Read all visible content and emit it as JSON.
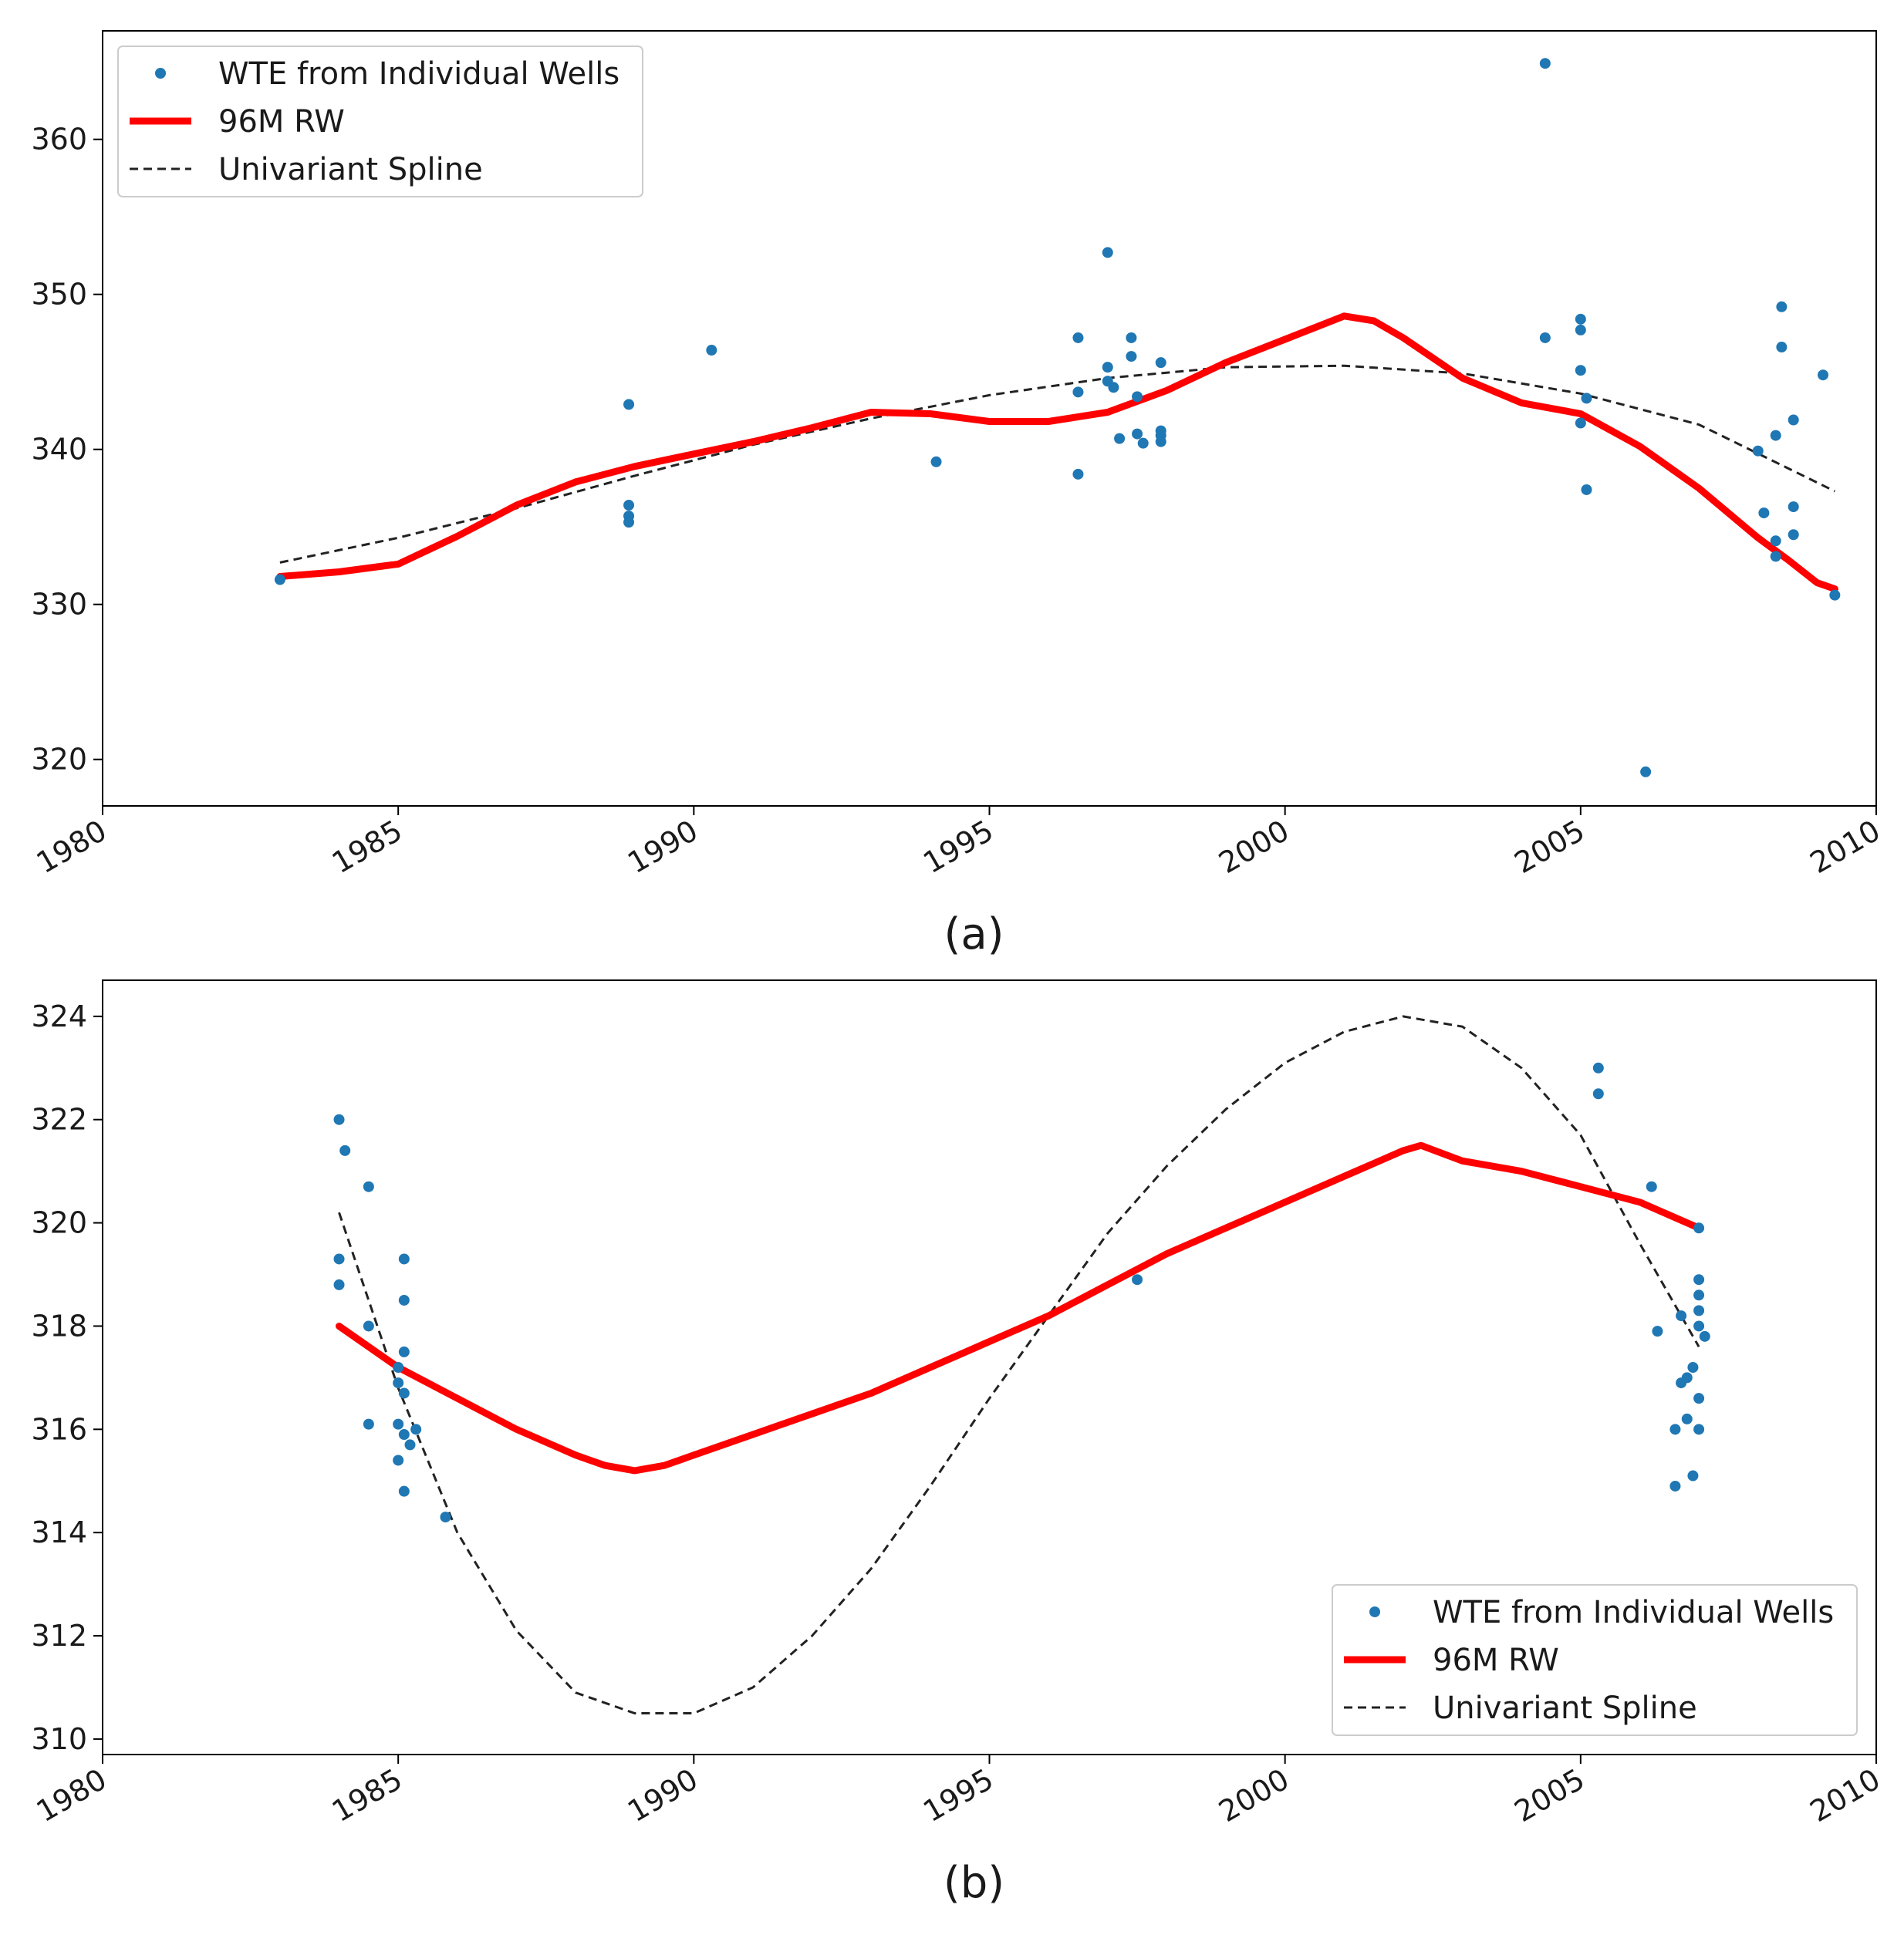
{
  "chart_data": [
    {
      "type": "scatter",
      "panel_label": "(a)",
      "xlim": [
        1980,
        2010
      ],
      "ylim": [
        317,
        367
      ],
      "x_ticks": [
        "1980",
        "1985",
        "1990",
        "1995",
        "2000",
        "2005",
        "2010"
      ],
      "y_ticks": [
        "320",
        "330",
        "340",
        "350",
        "360"
      ],
      "legend": {
        "placement": "upper-left",
        "entries": [
          "WTE from Individual Wells",
          "96M RW",
          "Univariant Spline"
        ]
      },
      "colors": {
        "points": "#1f77b4",
        "rolling": "#ff0000",
        "spline": "#222222"
      },
      "series": [
        {
          "name": "WTE from Individual Wells",
          "kind": "points",
          "points": [
            [
              1983.0,
              331.6
            ],
            [
              1988.9,
              342.9
            ],
            [
              1988.9,
              336.4
            ],
            [
              1988.9,
              335.7
            ],
            [
              1988.9,
              335.3
            ],
            [
              1990.3,
              346.4
            ],
            [
              1994.1,
              339.2
            ],
            [
              1996.5,
              347.2
            ],
            [
              1996.5,
              343.7
            ],
            [
              1996.5,
              338.4
            ],
            [
              1997.0,
              352.7
            ],
            [
              1997.0,
              345.3
            ],
            [
              1997.0,
              344.4
            ],
            [
              1997.1,
              344.0
            ],
            [
              1997.2,
              340.7
            ],
            [
              1997.4,
              347.2
            ],
            [
              1997.4,
              346.0
            ],
            [
              1997.5,
              343.4
            ],
            [
              1997.5,
              341.0
            ],
            [
              1997.6,
              340.4
            ],
            [
              1997.9,
              345.6
            ],
            [
              1997.9,
              341.2
            ],
            [
              1997.9,
              340.9
            ],
            [
              1997.9,
              340.5
            ],
            [
              2004.4,
              364.9
            ],
            [
              2004.4,
              347.2
            ],
            [
              2005.0,
              348.4
            ],
            [
              2005.0,
              347.7
            ],
            [
              2005.0,
              345.1
            ],
            [
              2005.1,
              343.3
            ],
            [
              2005.0,
              341.7
            ],
            [
              2005.1,
              337.4
            ],
            [
              2006.1,
              319.2
            ],
            [
              2008.0,
              339.9
            ],
            [
              2008.1,
              335.9
            ],
            [
              2008.3,
              340.9
            ],
            [
              2008.3,
              334.1
            ],
            [
              2008.3,
              333.1
            ],
            [
              2008.4,
              349.2
            ],
            [
              2008.4,
              346.6
            ],
            [
              2008.6,
              341.9
            ],
            [
              2008.6,
              336.3
            ],
            [
              2008.6,
              334.5
            ],
            [
              2009.1,
              344.8
            ],
            [
              2009.3,
              330.6
            ]
          ]
        },
        {
          "name": "96M RW",
          "kind": "line",
          "points": [
            [
              1983.0,
              331.8
            ],
            [
              1984.0,
              332.1
            ],
            [
              1985.0,
              332.6
            ],
            [
              1986.0,
              334.4
            ],
            [
              1987.0,
              336.4
            ],
            [
              1988.0,
              337.9
            ],
            [
              1989.0,
              338.9
            ],
            [
              1990.0,
              339.7
            ],
            [
              1991.0,
              340.5
            ],
            [
              1992.0,
              341.4
            ],
            [
              1993.0,
              342.4
            ],
            [
              1994.0,
              342.3
            ],
            [
              1995.0,
              341.8
            ],
            [
              1996.0,
              341.8
            ],
            [
              1997.0,
              342.4
            ],
            [
              1998.0,
              343.8
            ],
            [
              1999.0,
              345.6
            ],
            [
              2000.0,
              347.1
            ],
            [
              2001.0,
              348.6
            ],
            [
              2001.5,
              348.3
            ],
            [
              2002.0,
              347.2
            ],
            [
              2003.0,
              344.6
            ],
            [
              2004.0,
              343.0
            ],
            [
              2005.0,
              342.3
            ],
            [
              2006.0,
              340.2
            ],
            [
              2007.0,
              337.5
            ],
            [
              2008.0,
              334.3
            ],
            [
              2008.5,
              332.9
            ],
            [
              2009.0,
              331.4
            ],
            [
              2009.3,
              331.0
            ]
          ]
        },
        {
          "name": "Univariant Spline",
          "kind": "dashed-line",
          "points": [
            [
              1983.0,
              332.7
            ],
            [
              1985.0,
              334.3
            ],
            [
              1987.0,
              336.2
            ],
            [
              1989.0,
              338.3
            ],
            [
              1991.0,
              340.3
            ],
            [
              1993.0,
              342.0
            ],
            [
              1995.0,
              343.5
            ],
            [
              1997.0,
              344.6
            ],
            [
              1999.0,
              345.3
            ],
            [
              2001.0,
              345.4
            ],
            [
              2003.0,
              344.9
            ],
            [
              2005.0,
              343.6
            ],
            [
              2007.0,
              341.6
            ],
            [
              2009.3,
              337.3
            ]
          ]
        }
      ]
    },
    {
      "type": "scatter",
      "panel_label": "(b)",
      "xlim": [
        1980,
        2010
      ],
      "ylim": [
        309.7,
        324.7
      ],
      "x_ticks": [
        "1980",
        "1985",
        "1990",
        "1995",
        "2000",
        "2005",
        "2010"
      ],
      "y_ticks": [
        "310",
        "312",
        "314",
        "316",
        "318",
        "320",
        "322",
        "324"
      ],
      "legend": {
        "placement": "lower-right",
        "entries": [
          "WTE from Individual Wells",
          "96M RW",
          "Univariant Spline"
        ]
      },
      "colors": {
        "points": "#1f77b4",
        "rolling": "#ff0000",
        "spline": "#222222"
      },
      "series": [
        {
          "name": "WTE from Individual Wells",
          "kind": "points",
          "points": [
            [
              1984.0,
              322.0
            ],
            [
              1984.1,
              321.4
            ],
            [
              1984.5,
              320.7
            ],
            [
              1984.0,
              319.3
            ],
            [
              1984.0,
              318.8
            ],
            [
              1984.5,
              318.0
            ],
            [
              1984.5,
              316.1
            ],
            [
              1985.1,
              319.3
            ],
            [
              1985.1,
              318.5
            ],
            [
              1985.1,
              317.5
            ],
            [
              1985.0,
              317.2
            ],
            [
              1985.0,
              316.9
            ],
            [
              1985.1,
              316.7
            ],
            [
              1985.0,
              316.1
            ],
            [
              1985.1,
              315.9
            ],
            [
              1985.3,
              316.0
            ],
            [
              1985.2,
              315.7
            ],
            [
              1985.0,
              315.4
            ],
            [
              1985.1,
              314.8
            ],
            [
              1985.8,
              314.3
            ],
            [
              1997.5,
              318.9
            ],
            [
              2005.3,
              323.0
            ],
            [
              2005.3,
              322.5
            ],
            [
              2006.2,
              320.7
            ],
            [
              2006.3,
              317.9
            ],
            [
              2006.7,
              318.2
            ],
            [
              2006.7,
              316.9
            ],
            [
              2006.8,
              317.0
            ],
            [
              2006.6,
              316.0
            ],
            [
              2006.8,
              316.2
            ],
            [
              2006.9,
              317.2
            ],
            [
              2006.6,
              314.9
            ],
            [
              2006.9,
              315.1
            ],
            [
              2007.0,
              319.9
            ],
            [
              2007.0,
              318.9
            ],
            [
              2007.0,
              318.6
            ],
            [
              2007.0,
              318.3
            ],
            [
              2007.0,
              318.0
            ],
            [
              2007.1,
              317.8
            ],
            [
              2007.0,
              316.6
            ],
            [
              2007.0,
              316.0
            ]
          ]
        },
        {
          "name": "96M RW",
          "kind": "line",
          "points": [
            [
              1984.0,
              318.0
            ],
            [
              1985.0,
              317.2
            ],
            [
              1986.0,
              316.6
            ],
            [
              1987.0,
              316.0
            ],
            [
              1988.0,
              315.5
            ],
            [
              1988.5,
              315.3
            ],
            [
              1989.0,
              315.2
            ],
            [
              1989.5,
              315.3
            ],
            [
              1990.0,
              315.5
            ],
            [
              1991.0,
              315.9
            ],
            [
              1992.0,
              316.3
            ],
            [
              1993.0,
              316.7
            ],
            [
              1994.0,
              317.2
            ],
            [
              1995.0,
              317.7
            ],
            [
              1996.0,
              318.2
            ],
            [
              1997.0,
              318.8
            ],
            [
              1998.0,
              319.4
            ],
            [
              1999.0,
              319.9
            ],
            [
              2000.0,
              320.4
            ],
            [
              2001.0,
              320.9
            ],
            [
              2002.0,
              321.4
            ],
            [
              2002.3,
              321.5
            ],
            [
              2003.0,
              321.2
            ],
            [
              2004.0,
              321.0
            ],
            [
              2005.0,
              320.7
            ],
            [
              2006.0,
              320.4
            ],
            [
              2007.0,
              319.9
            ]
          ]
        },
        {
          "name": "Univariant Spline",
          "kind": "dashed-line",
          "points": [
            [
              1984.0,
              320.2
            ],
            [
              1985.0,
              316.8
            ],
            [
              1986.0,
              314.0
            ],
            [
              1987.0,
              312.1
            ],
            [
              1988.0,
              310.9
            ],
            [
              1989.0,
              310.5
            ],
            [
              1990.0,
              310.5
            ],
            [
              1991.0,
              311.0
            ],
            [
              1992.0,
              312.0
            ],
            [
              1993.0,
              313.3
            ],
            [
              1994.0,
              314.9
            ],
            [
              1995.0,
              316.6
            ],
            [
              1996.0,
              318.2
            ],
            [
              1997.0,
              319.8
            ],
            [
              1998.0,
              321.1
            ],
            [
              1999.0,
              322.2
            ],
            [
              2000.0,
              323.1
            ],
            [
              2001.0,
              323.7
            ],
            [
              2002.0,
              324.0
            ],
            [
              2003.0,
              323.8
            ],
            [
              2004.0,
              323.0
            ],
            [
              2005.0,
              321.7
            ],
            [
              2006.0,
              319.6
            ],
            [
              2007.0,
              317.6
            ]
          ]
        }
      ]
    }
  ]
}
